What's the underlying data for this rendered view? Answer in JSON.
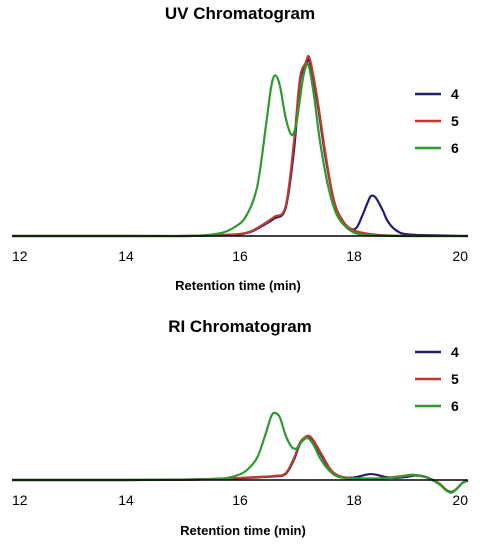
{
  "chart_data": [
    {
      "type": "line",
      "title": "UV Chromatogram",
      "xlabel": "Retention time (min)",
      "ylabel": "",
      "xlim": [
        12,
        20
      ],
      "x_ticks": [
        "12",
        "14",
        "16",
        "18",
        "20"
      ],
      "grid": false,
      "legend_position": "right",
      "series": [
        {
          "name": "4",
          "color": "#1f1f6e",
          "x": [
            12,
            14,
            15,
            15.6,
            16.0,
            16.2,
            16.4,
            16.6,
            16.8,
            16.95,
            17.05,
            17.15,
            17.22,
            17.35,
            17.5,
            17.65,
            17.8,
            17.95,
            18.05,
            18.15,
            18.25,
            18.3,
            18.38,
            18.5,
            18.6,
            18.75,
            19.0,
            20
          ],
          "y": [
            0,
            0,
            0,
            0.005,
            0.01,
            0.025,
            0.06,
            0.1,
            0.16,
            0.5,
            0.88,
            0.97,
            1.0,
            0.78,
            0.45,
            0.2,
            0.08,
            0.04,
            0.05,
            0.12,
            0.2,
            0.23,
            0.22,
            0.15,
            0.08,
            0.03,
            0.008,
            0
          ]
        },
        {
          "name": "5",
          "color": "#c0392b",
          "x": [
            12,
            14,
            15,
            15.6,
            16.0,
            16.2,
            16.4,
            16.6,
            16.8,
            16.95,
            17.05,
            17.15,
            17.22,
            17.35,
            17.5,
            17.65,
            17.8,
            17.95,
            18.2,
            18.5,
            19.0,
            20
          ],
          "y": [
            0,
            0,
            0,
            0.005,
            0.012,
            0.028,
            0.065,
            0.11,
            0.17,
            0.55,
            0.9,
            0.99,
            1.02,
            0.8,
            0.47,
            0.2,
            0.09,
            0.04,
            0.015,
            0.005,
            0,
            0
          ]
        },
        {
          "name": "6",
          "color": "#2e9a2e",
          "x": [
            12,
            14,
            15,
            15.4,
            15.7,
            15.9,
            16.1,
            16.3,
            16.45,
            16.55,
            16.62,
            16.7,
            16.8,
            16.9,
            16.98,
            17.05,
            17.12,
            17.2,
            17.3,
            17.4,
            17.55,
            17.7,
            17.9,
            18.1,
            18.4,
            19.0,
            20
          ],
          "y": [
            0,
            0,
            0,
            0.005,
            0.02,
            0.05,
            0.11,
            0.28,
            0.62,
            0.86,
            0.92,
            0.86,
            0.68,
            0.58,
            0.63,
            0.78,
            0.93,
            0.98,
            0.8,
            0.55,
            0.28,
            0.12,
            0.04,
            0.01,
            0.003,
            0,
            0
          ]
        }
      ]
    },
    {
      "type": "line",
      "title": "RI Chromatogram",
      "xlabel": "Retention time (min)",
      "ylabel": "",
      "xlim": [
        12,
        20
      ],
      "x_ticks": [
        "12",
        "14",
        "16",
        "18",
        "20"
      ],
      "grid": false,
      "legend_position": "top-right",
      "series": [
        {
          "name": "4",
          "color": "#1f1f6e",
          "x": [
            12,
            14,
            15,
            15.6,
            16.0,
            16.3,
            16.6,
            16.8,
            16.95,
            17.05,
            17.15,
            17.22,
            17.3,
            17.45,
            17.6,
            17.75,
            17.9,
            18.05,
            18.2,
            18.3,
            18.4,
            18.55,
            18.7,
            18.9,
            19.1,
            19.3,
            19.5,
            19.6,
            19.7,
            19.8,
            19.9,
            20
          ],
          "y": [
            0,
            0,
            0.005,
            0.015,
            0.025,
            0.035,
            0.05,
            0.08,
            0.28,
            0.48,
            0.56,
            0.57,
            0.5,
            0.3,
            0.12,
            0.05,
            0.03,
            0.04,
            0.07,
            0.08,
            0.07,
            0.04,
            0.03,
            0.04,
            0.06,
            0.03,
            -0.05,
            -0.12,
            -0.16,
            -0.12,
            -0.04,
            -0.01
          ]
        },
        {
          "name": "5",
          "color": "#c0392b",
          "x": [
            12,
            14,
            15,
            15.6,
            16.0,
            16.3,
            16.6,
            16.8,
            16.95,
            17.05,
            17.15,
            17.22,
            17.3,
            17.45,
            17.6,
            17.75,
            17.9,
            18.2,
            18.5,
            18.8,
            19.0,
            19.15,
            19.3,
            19.5,
            19.6,
            19.7,
            19.8,
            19.9,
            20
          ],
          "y": [
            0,
            0,
            0.005,
            0.015,
            0.028,
            0.04,
            0.055,
            0.09,
            0.3,
            0.5,
            0.58,
            0.59,
            0.52,
            0.32,
            0.13,
            0.05,
            0.03,
            0.02,
            0.025,
            0.05,
            0.07,
            0.06,
            0.03,
            -0.05,
            -0.12,
            -0.17,
            -0.12,
            -0.04,
            -0.01
          ]
        },
        {
          "name": "6",
          "color": "#2e9a2e",
          "x": [
            12,
            14,
            15,
            15.4,
            15.7,
            15.9,
            16.1,
            16.3,
            16.45,
            16.55,
            16.62,
            16.7,
            16.8,
            16.9,
            16.98,
            17.05,
            17.12,
            17.2,
            17.3,
            17.4,
            17.55,
            17.7,
            17.9,
            18.2,
            18.5,
            18.8,
            19.0,
            19.15,
            19.3,
            19.5,
            19.6,
            19.7,
            19.8,
            19.9,
            20
          ],
          "y": [
            0,
            0,
            0.003,
            0.008,
            0.02,
            0.05,
            0.12,
            0.3,
            0.62,
            0.86,
            0.9,
            0.84,
            0.6,
            0.45,
            0.42,
            0.48,
            0.55,
            0.56,
            0.46,
            0.3,
            0.14,
            0.05,
            0.02,
            0.015,
            0.02,
            0.045,
            0.065,
            0.055,
            0.025,
            -0.06,
            -0.13,
            -0.17,
            -0.12,
            -0.04,
            -0.01
          ]
        }
      ]
    }
  ]
}
